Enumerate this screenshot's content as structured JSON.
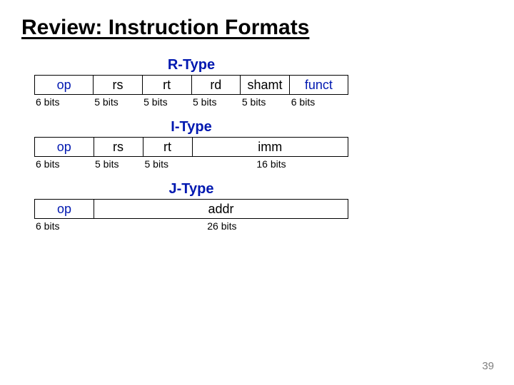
{
  "title": "Review: Instruction Formats",
  "page_number": "39",
  "colors": {
    "accent": "#0018b0",
    "text": "#000000",
    "border": "#000000",
    "muted": "#7f7f7f",
    "background": "#ffffff"
  },
  "total_bits": 32,
  "formats": {
    "r": {
      "label": "R-Type",
      "fields": [
        {
          "name": "op",
          "bits": 6,
          "bitlabel": "6 bits",
          "accent": true
        },
        {
          "name": "rs",
          "bits": 5,
          "bitlabel": "5 bits",
          "accent": false
        },
        {
          "name": "rt",
          "bits": 5,
          "bitlabel": "5 bits",
          "accent": false
        },
        {
          "name": "rd",
          "bits": 5,
          "bitlabel": "5 bits",
          "accent": false
        },
        {
          "name": "shamt",
          "bits": 5,
          "bitlabel": "5 bits",
          "accent": false
        },
        {
          "name": "funct",
          "bits": 6,
          "bitlabel": "6 bits",
          "accent": true
        }
      ]
    },
    "i": {
      "label": "I-Type",
      "fields": [
        {
          "name": "op",
          "bits": 6,
          "bitlabel": "6 bits",
          "accent": true
        },
        {
          "name": "rs",
          "bits": 5,
          "bitlabel": "5 bits",
          "accent": false
        },
        {
          "name": "rt",
          "bits": 5,
          "bitlabel": "5 bits",
          "accent": false
        },
        {
          "name": "imm",
          "bits": 16,
          "bitlabel": "16 bits",
          "accent": false
        }
      ]
    },
    "j": {
      "label": "J-Type",
      "fields": [
        {
          "name": "op",
          "bits": 6,
          "bitlabel": "6 bits",
          "accent": true
        },
        {
          "name": "addr",
          "bits": 26,
          "bitlabel": "26 bits",
          "accent": false
        }
      ]
    }
  }
}
